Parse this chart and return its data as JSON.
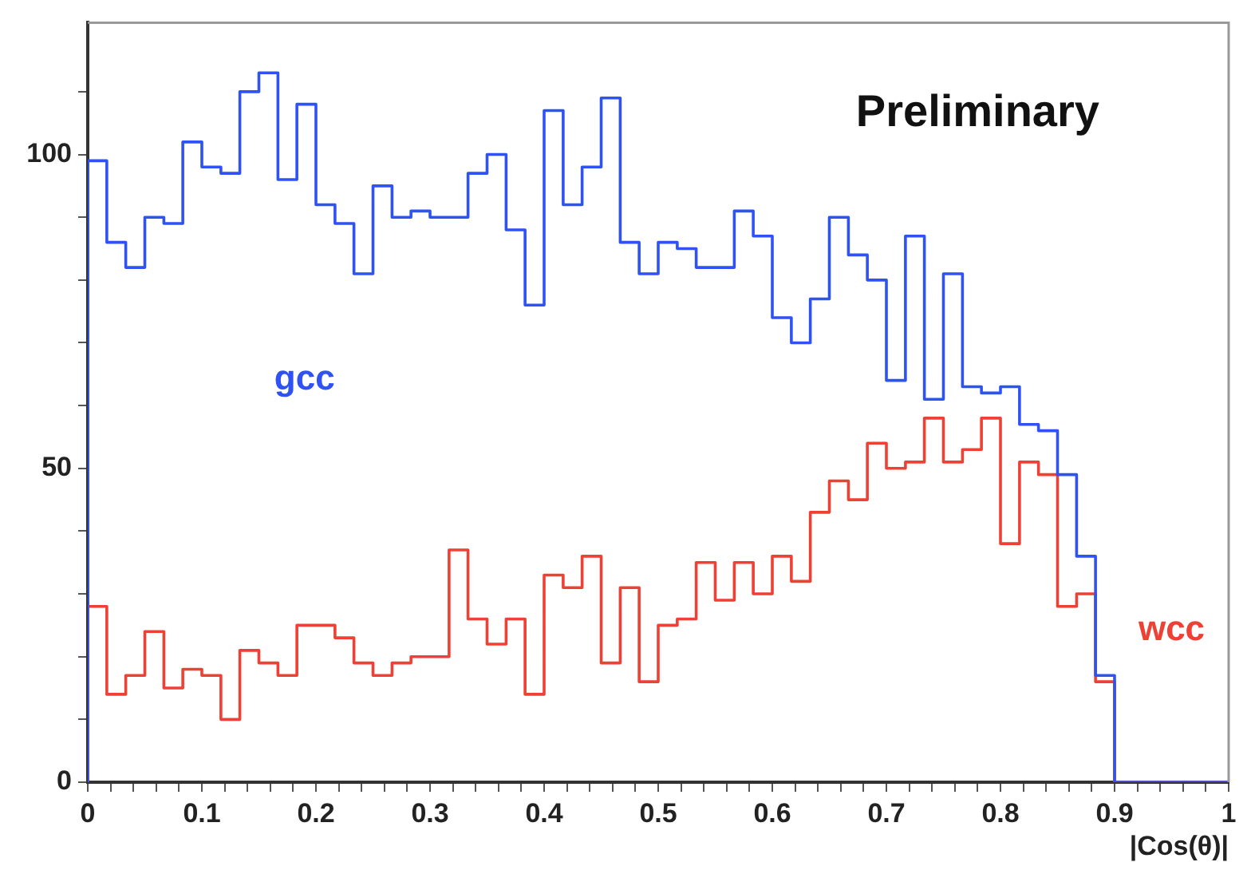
{
  "chart_data": {
    "type": "histogram",
    "xlabel": "|Cos(θ)|",
    "annotations": [
      "Preliminary"
    ],
    "bins": [
      0,
      0.0167,
      0.0333,
      0.05,
      0.0667,
      0.0833,
      0.1,
      0.1167,
      0.1333,
      0.15,
      0.1667,
      0.1833,
      0.2,
      0.2167,
      0.2333,
      0.25,
      0.2667,
      0.2833,
      0.3,
      0.3167,
      0.3333,
      0.35,
      0.3667,
      0.3833,
      0.4,
      0.4167,
      0.4333,
      0.45,
      0.4667,
      0.4833,
      0.5,
      0.5167,
      0.5333,
      0.55,
      0.5667,
      0.5833,
      0.6,
      0.6167,
      0.6333,
      0.65,
      0.6667,
      0.6833,
      0.7,
      0.7167,
      0.7333,
      0.75,
      0.7667,
      0.7833,
      0.8,
      0.8167,
      0.8333,
      0.85,
      0.8667,
      0.8833,
      0.9,
      0.9167,
      0.9333,
      0.95,
      0.9667,
      0.9833,
      1
    ],
    "series": [
      {
        "name": "gcc",
        "color": "#2f52f5",
        "values": [
          99,
          86,
          82,
          90,
          89,
          102,
          98,
          97,
          110,
          113,
          96,
          108,
          92,
          89,
          81,
          95,
          90,
          91,
          90,
          90,
          97,
          100,
          88,
          76,
          107,
          92,
          98,
          109,
          86,
          81,
          86,
          85,
          82,
          82,
          91,
          87,
          74,
          70,
          77,
          90,
          84,
          80,
          64,
          87,
          61,
          81,
          63,
          62,
          63,
          57,
          56,
          49,
          36,
          17,
          0,
          0,
          0,
          0,
          0,
          0
        ]
      },
      {
        "name": "wcc",
        "color": "#ee4035",
        "values": [
          28,
          14,
          17,
          24,
          15,
          18,
          17,
          10,
          21,
          19,
          17,
          25,
          25,
          23,
          19,
          17,
          19,
          20,
          20,
          37,
          26,
          22,
          26,
          14,
          33,
          31,
          36,
          19,
          31,
          16,
          25,
          26,
          35,
          29,
          35,
          30,
          36,
          32,
          43,
          48,
          45,
          54,
          50,
          51,
          58,
          51,
          53,
          58,
          38,
          51,
          49,
          28,
          30,
          16,
          0,
          0,
          0,
          0,
          0,
          0
        ]
      }
    ],
    "xlim": [
      0,
      1
    ],
    "ylim": [
      0,
      121
    ],
    "xticks": [
      0,
      {
        "value": 0.02,
        "label": null
      },
      {
        "value": 0.04,
        "label": null
      },
      {
        "value": 0.06,
        "label": null
      },
      {
        "value": 0.08,
        "label": null
      },
      0.1,
      {
        "value": 0.12,
        "label": null
      },
      {
        "value": 0.14,
        "label": null
      },
      {
        "value": 0.16,
        "label": null
      },
      {
        "value": 0.18,
        "label": null
      },
      0.2,
      {
        "value": 0.22,
        "label": null
      },
      {
        "value": 0.24,
        "label": null
      },
      {
        "value": 0.26,
        "label": null
      },
      {
        "value": 0.28,
        "label": null
      },
      0.3,
      {
        "value": 0.32,
        "label": null
      },
      {
        "value": 0.34,
        "label": null
      },
      {
        "value": 0.36,
        "label": null
      },
      {
        "value": 0.38,
        "label": null
      },
      0.4,
      {
        "value": 0.42,
        "label": null
      },
      {
        "value": 0.44,
        "label": null
      },
      {
        "value": 0.46,
        "label": null
      },
      {
        "value": 0.48,
        "label": null
      },
      0.5,
      {
        "value": 0.52,
        "label": null
      },
      {
        "value": 0.54,
        "label": null
      },
      {
        "value": 0.56,
        "label": null
      },
      {
        "value": 0.58,
        "label": null
      },
      0.6,
      {
        "value": 0.62,
        "label": null
      },
      {
        "value": 0.64,
        "label": null
      },
      {
        "value": 0.66,
        "label": null
      },
      {
        "value": 0.68,
        "label": null
      },
      0.7,
      {
        "value": 0.72,
        "label": null
      },
      {
        "value": 0.74,
        "label": null
      },
      {
        "value": 0.76,
        "label": null
      },
      {
        "value": 0.78,
        "label": null
      },
      0.8,
      {
        "value": 0.82,
        "label": null
      },
      {
        "value": 0.84,
        "label": null
      },
      {
        "value": 0.86,
        "label": null
      },
      {
        "value": 0.88,
        "label": null
      },
      0.9,
      {
        "value": 0.92,
        "label": null
      },
      {
        "value": 0.94,
        "label": null
      },
      {
        "value": 0.96,
        "label": null
      },
      {
        "value": 0.98,
        "label": null
      },
      1
    ],
    "yticks": [
      0,
      {
        "value": 10,
        "label": null
      },
      {
        "value": 20,
        "label": null
      },
      {
        "value": 30,
        "label": null
      },
      {
        "value": 40,
        "label": null
      },
      50,
      {
        "value": 60,
        "label": null
      },
      {
        "value": 70,
        "label": null
      },
      {
        "value": 80,
        "label": null
      },
      {
        "value": 90,
        "label": null
      },
      100,
      {
        "value": 110,
        "label": null
      }
    ]
  }
}
